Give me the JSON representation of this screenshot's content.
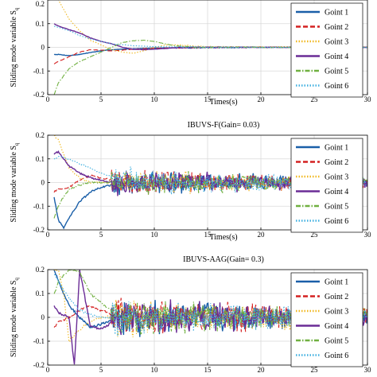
{
  "chart_data": [
    {
      "type": "line",
      "title": "",
      "xlabel": "Times(s)",
      "ylabel": "Sliding mode variable S",
      "ylabel_sub": "q",
      "xlim": [
        0,
        30
      ],
      "ylim": [
        -0.2,
        0.2
      ],
      "xticks": [
        0,
        5,
        10,
        15,
        20,
        25,
        30
      ],
      "yticks": [
        -0.2,
        -0.1,
        0,
        0.1,
        0.2
      ],
      "grid": true,
      "legend_position": "top-right",
      "series": [
        {
          "name": "Goint 1",
          "color": "#1a5fa8",
          "dash": "solid",
          "x": [
            0.6,
            1,
            2,
            3,
            4,
            5,
            6,
            8,
            10,
            12,
            15,
            20,
            25,
            30
          ],
          "y": [
            -0.03,
            -0.03,
            -0.035,
            -0.03,
            -0.022,
            -0.015,
            -0.01,
            -0.006,
            -0.003,
            -0.002,
            -0.001,
            0,
            0,
            0
          ]
        },
        {
          "name": "Goint 2",
          "color": "#d42020",
          "dash": "dash",
          "x": [
            0.6,
            1,
            1.5,
            2,
            3,
            4,
            5,
            6,
            7,
            8,
            10,
            12,
            15,
            20,
            25,
            30
          ],
          "y": [
            -0.07,
            -0.06,
            -0.05,
            -0.04,
            -0.02,
            -0.01,
            -0.012,
            -0.015,
            -0.012,
            -0.008,
            -0.004,
            -0.002,
            0,
            0,
            0,
            0
          ]
        },
        {
          "name": "Goint 3",
          "color": "#f0b820",
          "dash": "dot",
          "x": [
            0.6,
            1,
            1.5,
            2,
            3,
            4,
            5,
            6,
            7,
            8,
            9,
            10,
            11,
            12,
            14,
            16,
            20,
            25,
            30
          ],
          "y": [
            0.22,
            0.2,
            0.16,
            0.12,
            0.07,
            0.03,
            0.01,
            -0.01,
            -0.02,
            -0.025,
            -0.015,
            0.0,
            0.01,
            0.01,
            0.004,
            0.002,
            0.002,
            0.002,
            0.002
          ]
        },
        {
          "name": "Goint 4",
          "color": "#6a2c96",
          "dash": "solid",
          "x": [
            0.6,
            1,
            2,
            3,
            4,
            5,
            6,
            7,
            8,
            9,
            10,
            11,
            12,
            14,
            16,
            20,
            25,
            30
          ],
          "y": [
            0.1,
            0.09,
            0.075,
            0.06,
            0.04,
            0.025,
            0.015,
            0.0,
            -0.008,
            -0.01,
            -0.008,
            -0.005,
            -0.002,
            0.0,
            0.0,
            0.0,
            0.0,
            0.0
          ]
        },
        {
          "name": "Goint 5",
          "color": "#70b040",
          "dash": "dashdot",
          "x": [
            0.6,
            1,
            1.5,
            2,
            3,
            4,
            5,
            6,
            7,
            8,
            9,
            10,
            11,
            12,
            14,
            16,
            20,
            25,
            30
          ],
          "y": [
            -0.2,
            -0.15,
            -0.12,
            -0.09,
            -0.06,
            -0.04,
            -0.02,
            0.0,
            0.02,
            0.028,
            0.03,
            0.025,
            0.015,
            0.006,
            0.0,
            0.0,
            0.0,
            0.0,
            0.0
          ]
        },
        {
          "name": "Goint 6",
          "color": "#40b0e0",
          "dash": "dot",
          "x": [
            0.6,
            1,
            2,
            3,
            4,
            5,
            6,
            8,
            10,
            12,
            15,
            20,
            25,
            30
          ],
          "y": [
            0.09,
            0.085,
            0.07,
            0.05,
            0.035,
            0.025,
            0.015,
            0.007,
            0.003,
            0.002,
            0.001,
            0,
            0,
            0
          ]
        }
      ]
    },
    {
      "type": "line",
      "title": "IBUVS-F(Gain= 0.03)",
      "xlabel": "Times(s)",
      "ylabel": "Sliding mode variable S",
      "ylabel_sub": "q",
      "xlim": [
        0,
        30
      ],
      "ylim": [
        -0.2,
        0.2
      ],
      "xticks": [
        0,
        5,
        10,
        15,
        20,
        25,
        30
      ],
      "yticks": [
        -0.2,
        -0.1,
        0,
        0.1,
        0.2
      ],
      "grid": true,
      "legend_position": "top-right",
      "series": [
        {
          "name": "Goint 1",
          "color": "#1a5fa8",
          "dash": "solid",
          "x": [
            0.6,
            1,
            1.5,
            2,
            3,
            4,
            5,
            6,
            8,
            10,
            30
          ],
          "y": [
            -0.06,
            -0.16,
            -0.19,
            -0.15,
            -0.08,
            -0.04,
            -0.02,
            -0.01,
            0.0,
            0.0,
            0.0
          ]
        },
        {
          "name": "Goint 2",
          "color": "#d42020",
          "dash": "dash",
          "x": [
            0.6,
            1,
            2,
            3,
            4,
            5,
            6,
            8,
            10,
            30
          ],
          "y": [
            -0.04,
            -0.03,
            -0.02,
            0.01,
            0.03,
            0.02,
            0.01,
            0.0,
            0.0,
            0.0
          ]
        },
        {
          "name": "Goint 3",
          "color": "#f0b820",
          "dash": "dot",
          "x": [
            0.6,
            1,
            1.5,
            2,
            3,
            4,
            5,
            6,
            8,
            10,
            30
          ],
          "y": [
            0.2,
            0.18,
            0.12,
            0.06,
            0.02,
            0.0,
            0.0,
            0.0,
            0.0,
            0.0,
            0.0
          ]
        },
        {
          "name": "Goint 4",
          "color": "#6a2c96",
          "dash": "solid",
          "x": [
            0.6,
            1,
            1.5,
            2,
            3,
            4,
            5,
            6,
            8,
            10,
            30
          ],
          "y": [
            0.12,
            0.13,
            0.1,
            0.07,
            0.04,
            0.02,
            0.01,
            0.0,
            0.0,
            0.0,
            0.0
          ]
        },
        {
          "name": "Goint 5",
          "color": "#70b040",
          "dash": "dashdot",
          "x": [
            0.6,
            1,
            1.5,
            2,
            3,
            4,
            5,
            6,
            8,
            10,
            30
          ],
          "y": [
            -0.15,
            -0.1,
            -0.06,
            -0.03,
            -0.01,
            0.0,
            0.0,
            0.0,
            0.0,
            0.0,
            0.0
          ]
        },
        {
          "name": "Goint 6",
          "color": "#40b0e0",
          "dash": "dot",
          "x": [
            0.6,
            1,
            2,
            3,
            4,
            5,
            6,
            8,
            10,
            30
          ],
          "y": [
            0.1,
            0.11,
            0.1,
            0.08,
            0.06,
            0.04,
            0.025,
            0.01,
            0.0,
            0.0
          ]
        }
      ]
    },
    {
      "type": "line",
      "title": "IBUVS-AAG(Gain= 0.3)",
      "xlabel": "",
      "ylabel": "Sliding mode variable S",
      "ylabel_sub": "q",
      "xlim": [
        0,
        30
      ],
      "ylim": [
        -0.2,
        0.2
      ],
      "xticks": [
        0,
        5,
        10,
        15,
        20,
        25,
        30
      ],
      "yticks": [
        -0.2,
        -0.1,
        0,
        0.1,
        0.2
      ],
      "grid": true,
      "legend_position": "top-right",
      "series": [
        {
          "name": "Goint 1",
          "color": "#1a5fa8",
          "dash": "solid",
          "x": [
            0.6,
            1,
            2,
            3,
            4,
            5,
            6,
            8,
            10,
            30
          ],
          "y": [
            0.2,
            0.15,
            0.05,
            0.0,
            -0.04,
            -0.03,
            -0.015,
            0.0,
            0.0,
            0.0
          ]
        },
        {
          "name": "Goint 2",
          "color": "#d42020",
          "dash": "dash",
          "x": [
            0.6,
            1,
            2,
            3,
            4,
            5,
            6,
            8,
            10,
            30
          ],
          "y": [
            -0.04,
            -0.02,
            0.0,
            0.03,
            0.05,
            0.03,
            0.01,
            0.0,
            0.0,
            0.0
          ]
        },
        {
          "name": "Goint 3",
          "color": "#f0b820",
          "dash": "dot",
          "x": [
            0.6,
            1,
            1.5,
            2,
            3,
            4,
            5,
            6,
            8,
            10,
            30
          ],
          "y": [
            0.2,
            0.2,
            0.1,
            -0.1,
            -0.05,
            -0.02,
            0.0,
            0.0,
            0.0,
            0.0,
            0.0
          ]
        },
        {
          "name": "Goint 4",
          "color": "#6a2c96",
          "dash": "solid",
          "x": [
            0.6,
            1,
            2,
            2.5,
            3,
            4,
            5,
            6,
            8,
            10,
            30
          ],
          "y": [
            0.05,
            0.02,
            0.0,
            -0.2,
            0.2,
            -0.04,
            -0.05,
            -0.02,
            0.0,
            0.0,
            0.0
          ]
        },
        {
          "name": "Goint 5",
          "color": "#70b040",
          "dash": "dashdot",
          "x": [
            0.6,
            1,
            2,
            3,
            4,
            5,
            6,
            8,
            10,
            30
          ],
          "y": [
            0.1,
            0.15,
            0.2,
            0.19,
            0.1,
            0.06,
            0.03,
            0.0,
            0.0,
            0.0
          ]
        },
        {
          "name": "Goint 6",
          "color": "#40b0e0",
          "dash": "dot",
          "x": [
            0.6,
            1,
            2,
            3,
            4,
            5,
            6,
            8,
            10,
            30
          ],
          "y": [
            0.18,
            0.15,
            0.08,
            0.03,
            0.01,
            0.0,
            0.0,
            0.0,
            0.0,
            0.0
          ]
        }
      ]
    }
  ]
}
